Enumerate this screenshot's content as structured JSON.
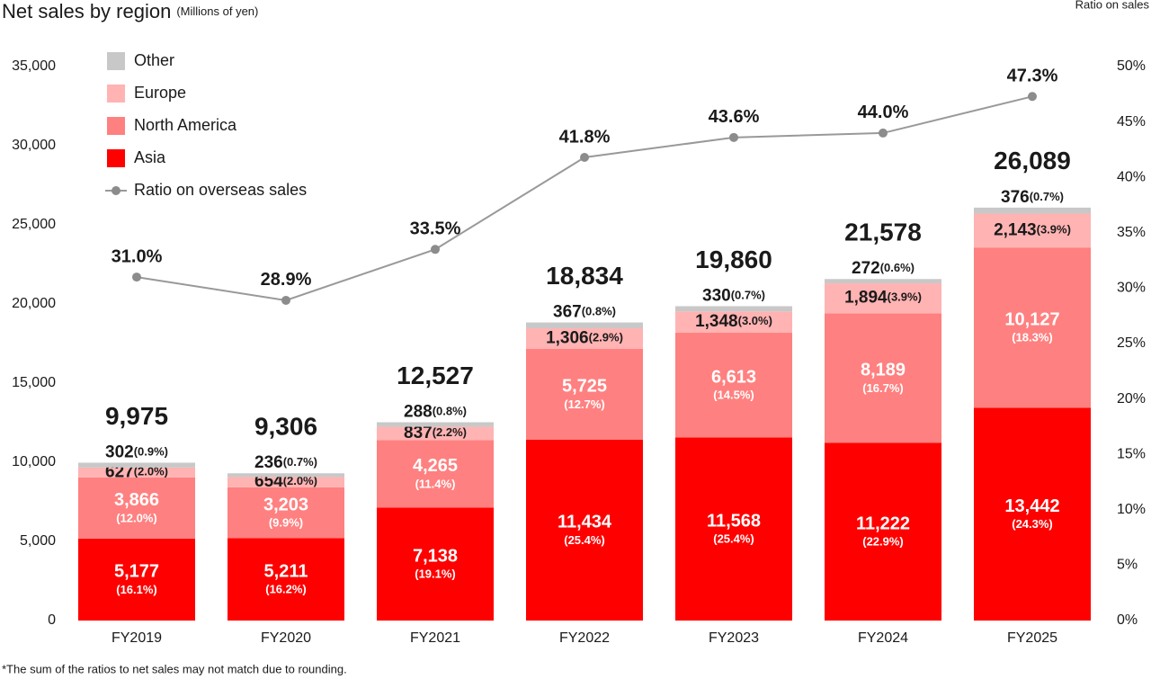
{
  "chart_data": {
    "type": "bar",
    "stacked": true,
    "title": "Net sales by region",
    "subtitle": "(Millions of yen)",
    "y2_label": "Ratio on sales",
    "footnote": "*The sum of the ratios to net sales may not match due to rounding.",
    "categories": [
      "FY2019",
      "FY2020",
      "FY2021",
      "FY2022",
      "FY2023",
      "FY2024",
      "FY2025"
    ],
    "ylim": [
      0,
      35000
    ],
    "yticks": [
      0,
      {
        "value": 5000,
        "label": "5,000"
      },
      {
        "value": 10000,
        "label": "10,000"
      },
      {
        "value": 15000,
        "label": "15,000"
      },
      {
        "value": 20000,
        "label": "20,000"
      },
      {
        "value": 25000,
        "label": "25,000"
      },
      {
        "value": 30000,
        "label": "30,000"
      },
      {
        "value": 35000,
        "label": "35,000"
      }
    ],
    "y2lim": [
      0,
      50
    ],
    "y2ticks": [
      {
        "value": 0,
        "label": "0%"
      },
      {
        "value": 5,
        "label": "5%"
      },
      {
        "value": 10,
        "label": "10%"
      },
      {
        "value": 15,
        "label": "15%"
      },
      {
        "value": 20,
        "label": "20%"
      },
      {
        "value": 25,
        "label": "25%"
      },
      {
        "value": 30,
        "label": "30%"
      },
      {
        "value": 35,
        "label": "35%"
      },
      {
        "value": 40,
        "label": "40%"
      },
      {
        "value": 45,
        "label": "45%"
      },
      {
        "value": 50,
        "label": "50%"
      }
    ],
    "totals": [
      9975,
      9306,
      12527,
      18834,
      19860,
      21578,
      26089
    ],
    "total_labels": [
      "9,975",
      "9,306",
      "12,527",
      "18,834",
      "19,860",
      "21,578",
      "26,089"
    ],
    "series": [
      {
        "name": "Asia",
        "color": "#ff0000",
        "values": [
          5177,
          5211,
          7138,
          11434,
          11568,
          11222,
          13442
        ],
        "value_labels": [
          "5,177",
          "5,211",
          "7,138",
          "11,434",
          "11,568",
          "11,222",
          "13,442"
        ],
        "share_labels": [
          "(16.1%)",
          "(16.2%)",
          "(19.1%)",
          "(25.4%)",
          "(25.4%)",
          "(22.9%)",
          "(24.3%)"
        ]
      },
      {
        "name": "North America",
        "color": "#ff8080",
        "values": [
          3866,
          3203,
          4265,
          5725,
          6613,
          8189,
          10127
        ],
        "value_labels": [
          "3,866",
          "3,203",
          "4,265",
          "5,725",
          "6,613",
          "8,189",
          "10,127"
        ],
        "share_labels": [
          "(12.0%)",
          "(9.9%)",
          "(11.4%)",
          "(12.7%)",
          "(14.5%)",
          "(16.7%)",
          "(18.3%)"
        ]
      },
      {
        "name": "Europe",
        "color": "#ffb3b3",
        "values": [
          627,
          654,
          837,
          1306,
          1348,
          1894,
          2143
        ],
        "value_labels": [
          "627",
          "654",
          "837",
          "1,306",
          "1,348",
          "1,894",
          "2,143"
        ],
        "share_labels": [
          "(2.0%)",
          "(2.0%)",
          "(2.2%)",
          "(2.9%)",
          "(3.0%)",
          "(3.9%)",
          "(3.9%)"
        ]
      },
      {
        "name": "Other",
        "color": "#c8c8c8",
        "values": [
          302,
          236,
          288,
          367,
          330,
          272,
          376
        ],
        "share_labels": [
          "(0.9%)",
          "(0.7%)",
          "(0.8%)",
          "(0.8%)",
          "(0.7%)",
          "(0.6%)",
          "(0.7%)"
        ]
      },
      {
        "name": "Ratio on overseas sales",
        "type": "line",
        "axis": "y2",
        "color": "#999999",
        "values": [
          31.0,
          28.9,
          33.5,
          41.8,
          43.6,
          44.0,
          47.3
        ],
        "value_labels": [
          "31.0%",
          "28.9%",
          "33.5%",
          "41.8%",
          "43.6%",
          "44.0%",
          "47.3%"
        ]
      }
    ]
  }
}
